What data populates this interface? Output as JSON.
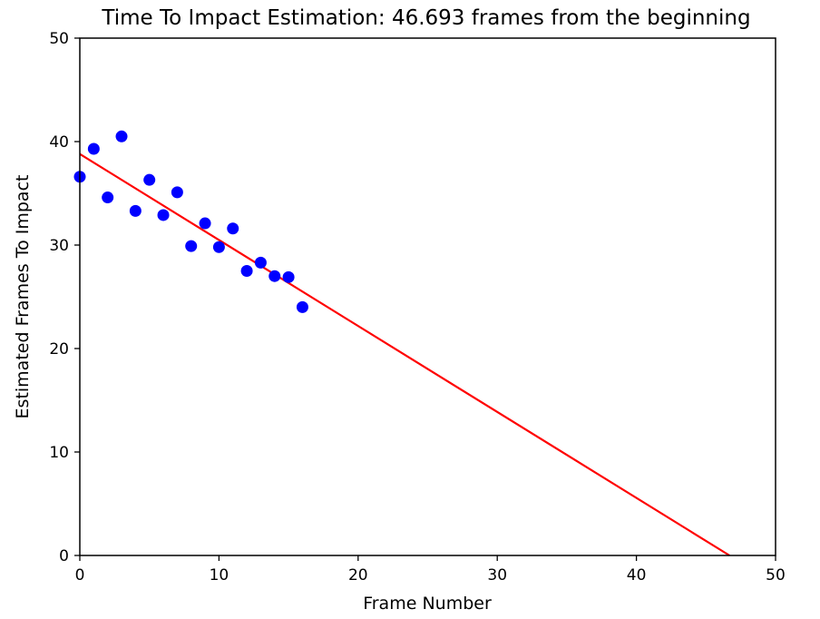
{
  "chart_data": {
    "type": "scatter",
    "title": "Time To Impact Estimation: 46.693 frames from the beginning",
    "xlabel": "Frame Number",
    "ylabel": "Estimated Frames To Impact",
    "xlim": [
      0,
      50
    ],
    "ylim": [
      0,
      50
    ],
    "xticks": [
      0,
      10,
      20,
      30,
      40,
      50
    ],
    "yticks": [
      0,
      10,
      20,
      30,
      40,
      50
    ],
    "grid": false,
    "points": {
      "color": "#0000ff",
      "x": [
        0,
        1,
        2,
        3,
        4,
        5,
        6,
        7,
        8,
        9,
        10,
        11,
        12,
        13,
        14,
        15,
        16
      ],
      "y": [
        36.6,
        39.3,
        34.6,
        40.5,
        33.3,
        36.3,
        32.9,
        35.1,
        29.9,
        32.1,
        29.8,
        31.6,
        27.5,
        28.3,
        27.0,
        26.9,
        24.0
      ]
    },
    "fit_line": {
      "color": "#ff0000",
      "x": [
        0,
        46.693
      ],
      "y": [
        38.8,
        0
      ]
    }
  }
}
